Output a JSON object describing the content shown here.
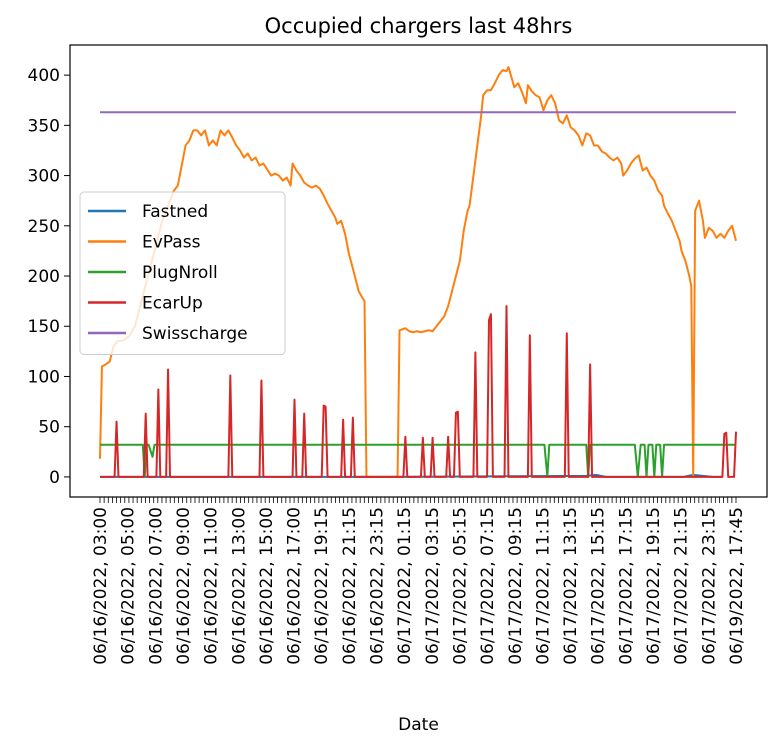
{
  "chart_data": {
    "type": "line",
    "title": "Occupied chargers last 48hrs",
    "xlabel": "Date",
    "ylabel": "",
    "ylim": [
      -20,
      430
    ],
    "yticks": [
      0,
      50,
      100,
      150,
      200,
      250,
      300,
      350,
      400
    ],
    "xticklabels": [
      "06/16/2022, 03:00",
      "06/16/2022, 05:00",
      "06/16/2022, 07:00",
      "06/16/2022, 09:00",
      "06/16/2022, 11:00",
      "06/16/2022, 13:00",
      "06/16/2022, 15:00",
      "06/16/2022, 17:00",
      "06/16/2022, 19:15",
      "06/16/2022, 21:15",
      "06/16/2022, 23:15",
      "06/17/2022, 01:15",
      "06/17/2022, 03:15",
      "06/17/2022, 05:15",
      "06/17/2022, 07:15",
      "06/17/2022, 09:15",
      "06/17/2022, 11:15",
      "06/17/2022, 13:15",
      "06/17/2022, 15:15",
      "06/17/2022, 17:15",
      "06/17/2022, 19:15",
      "06/17/2022, 21:15",
      "06/17/2022, 23:15",
      "06/19/2022, 17:45"
    ],
    "grid": false,
    "legend_position": "center-left",
    "series": [
      {
        "name": "Fastned",
        "color": "#1f77b4",
        "points": [
          [
            0,
            0
          ],
          [
            300,
            0
          ],
          [
            500,
            1
          ],
          [
            510,
            2
          ],
          [
            520,
            0
          ],
          [
            600,
            0
          ],
          [
            610,
            2
          ],
          [
            620,
            1
          ],
          [
            630,
            0
          ],
          [
            640,
            0
          ]
        ]
      },
      {
        "name": "EvPass",
        "color": "#ff7f0e",
        "points": [
          [
            0,
            18
          ],
          [
            2,
            110
          ],
          [
            6,
            112
          ],
          [
            10,
            115
          ],
          [
            14,
            130
          ],
          [
            18,
            135
          ],
          [
            24,
            136
          ],
          [
            30,
            140
          ],
          [
            36,
            150
          ],
          [
            40,
            165
          ],
          [
            44,
            180
          ],
          [
            48,
            195
          ],
          [
            52,
            210
          ],
          [
            56,
            225
          ],
          [
            60,
            240
          ],
          [
            64,
            255
          ],
          [
            68,
            265
          ],
          [
            72,
            275
          ],
          [
            76,
            285
          ],
          [
            80,
            290
          ],
          [
            84,
            310
          ],
          [
            88,
            330
          ],
          [
            92,
            335
          ],
          [
            96,
            345
          ],
          [
            100,
            345
          ],
          [
            104,
            340
          ],
          [
            108,
            345
          ],
          [
            112,
            330
          ],
          [
            116,
            335
          ],
          [
            120,
            330
          ],
          [
            124,
            345
          ],
          [
            128,
            340
          ],
          [
            132,
            345
          ],
          [
            136,
            338
          ],
          [
            140,
            330
          ],
          [
            144,
            325
          ],
          [
            148,
            318
          ],
          [
            152,
            322
          ],
          [
            156,
            315
          ],
          [
            160,
            318
          ],
          [
            164,
            310
          ],
          [
            168,
            312
          ],
          [
            172,
            306
          ],
          [
            176,
            300
          ],
          [
            180,
            302
          ],
          [
            184,
            300
          ],
          [
            188,
            295
          ],
          [
            192,
            298
          ],
          [
            196,
            290
          ],
          [
            198,
            312
          ],
          [
            202,
            305
          ],
          [
            206,
            300
          ],
          [
            210,
            293
          ],
          [
            214,
            290
          ],
          [
            218,
            288
          ],
          [
            222,
            290
          ],
          [
            226,
            287
          ],
          [
            230,
            280
          ],
          [
            234,
            272
          ],
          [
            238,
            265
          ],
          [
            242,
            258
          ],
          [
            244,
            252
          ],
          [
            248,
            255
          ],
          [
            252,
            242
          ],
          [
            256,
            222
          ],
          [
            258,
            215
          ],
          [
            262,
            200
          ],
          [
            266,
            185
          ],
          [
            270,
            178
          ],
          [
            272,
            175
          ],
          [
            274,
            0
          ],
          [
            306,
            0
          ],
          [
            308,
            146
          ],
          [
            314,
            148
          ],
          [
            318,
            145
          ],
          [
            322,
            144
          ],
          [
            326,
            145
          ],
          [
            330,
            144
          ],
          [
            334,
            145
          ],
          [
            338,
            146
          ],
          [
            342,
            145
          ],
          [
            346,
            150
          ],
          [
            350,
            155
          ],
          [
            354,
            160
          ],
          [
            358,
            170
          ],
          [
            362,
            185
          ],
          [
            366,
            200
          ],
          [
            370,
            215
          ],
          [
            374,
            245
          ],
          [
            378,
            265
          ],
          [
            380,
            270
          ],
          [
            384,
            300
          ],
          [
            388,
            330
          ],
          [
            392,
            360
          ],
          [
            394,
            380
          ],
          [
            398,
            385
          ],
          [
            402,
            385
          ],
          [
            406,
            392
          ],
          [
            410,
            400
          ],
          [
            414,
            405
          ],
          [
            418,
            404
          ],
          [
            420,
            408
          ],
          [
            424,
            395
          ],
          [
            426,
            388
          ],
          [
            430,
            392
          ],
          [
            434,
            383
          ],
          [
            438,
            372
          ],
          [
            440,
            390
          ],
          [
            444,
            384
          ],
          [
            448,
            380
          ],
          [
            452,
            378
          ],
          [
            456,
            365
          ],
          [
            460,
            375
          ],
          [
            464,
            380
          ],
          [
            468,
            372
          ],
          [
            472,
            355
          ],
          [
            476,
            352
          ],
          [
            480,
            360
          ],
          [
            484,
            348
          ],
          [
            488,
            345
          ],
          [
            492,
            340
          ],
          [
            496,
            330
          ],
          [
            500,
            342
          ],
          [
            504,
            340
          ],
          [
            508,
            330
          ],
          [
            512,
            330
          ],
          [
            516,
            324
          ],
          [
            520,
            322
          ],
          [
            524,
            318
          ],
          [
            528,
            315
          ],
          [
            532,
            318
          ],
          [
            536,
            312
          ],
          [
            538,
            300
          ],
          [
            542,
            305
          ],
          [
            546,
            312
          ],
          [
            550,
            317
          ],
          [
            554,
            320
          ],
          [
            558,
            305
          ],
          [
            562,
            308
          ],
          [
            566,
            300
          ],
          [
            570,
            295
          ],
          [
            574,
            285
          ],
          [
            578,
            280
          ],
          [
            580,
            270
          ],
          [
            584,
            262
          ],
          [
            588,
            255
          ],
          [
            592,
            245
          ],
          [
            596,
            235
          ],
          [
            598,
            225
          ],
          [
            602,
            215
          ],
          [
            606,
            200
          ],
          [
            608,
            190
          ],
          [
            610,
            0
          ],
          [
            612,
            265
          ],
          [
            616,
            275
          ],
          [
            620,
            255
          ],
          [
            622,
            238
          ],
          [
            626,
            248
          ],
          [
            630,
            245
          ],
          [
            634,
            238
          ],
          [
            638,
            242
          ],
          [
            642,
            238
          ],
          [
            646,
            245
          ],
          [
            650,
            250
          ],
          [
            654,
            235
          ]
        ]
      },
      {
        "name": "PlugNroll",
        "color": "#2ca02c",
        "points": [
          [
            0,
            32
          ],
          [
            44,
            32
          ],
          [
            46,
            0
          ],
          [
            48,
            32
          ],
          [
            50,
            32
          ],
          [
            54,
            20
          ],
          [
            56,
            32
          ],
          [
            457,
            32
          ],
          [
            460,
            0
          ],
          [
            462,
            32
          ],
          [
            500,
            32
          ],
          [
            502,
            0
          ],
          [
            504,
            32
          ],
          [
            550,
            32
          ],
          [
            553,
            0
          ],
          [
            556,
            32
          ],
          [
            560,
            32
          ],
          [
            562,
            0
          ],
          [
            564,
            32
          ],
          [
            568,
            32
          ],
          [
            570,
            0
          ],
          [
            572,
            32
          ],
          [
            576,
            32
          ],
          [
            578,
            0
          ],
          [
            580,
            32
          ],
          [
            654,
            32
          ]
        ]
      },
      {
        "name": "EcarUp",
        "color": "#d62728",
        "points": [
          [
            0,
            0
          ],
          [
            15,
            0
          ],
          [
            17,
            55
          ],
          [
            19,
            0
          ],
          [
            45,
            0
          ],
          [
            47,
            63
          ],
          [
            49,
            0
          ],
          [
            58,
            0
          ],
          [
            60,
            87
          ],
          [
            62,
            0
          ],
          [
            68,
            0
          ],
          [
            70,
            107
          ],
          [
            72,
            0
          ],
          [
            132,
            0
          ],
          [
            134,
            101
          ],
          [
            136,
            0
          ],
          [
            164,
            0
          ],
          [
            166,
            96
          ],
          [
            168,
            0
          ],
          [
            198,
            0
          ],
          [
            200,
            77
          ],
          [
            202,
            0
          ],
          [
            208,
            0
          ],
          [
            210,
            63
          ],
          [
            212,
            0
          ],
          [
            228,
            0
          ],
          [
            230,
            71
          ],
          [
            232,
            70
          ],
          [
            234,
            0
          ],
          [
            248,
            0
          ],
          [
            250,
            57
          ],
          [
            252,
            0
          ],
          [
            258,
            0
          ],
          [
            260,
            59
          ],
          [
            262,
            0
          ],
          [
            312,
            0
          ],
          [
            314,
            40
          ],
          [
            316,
            0
          ],
          [
            330,
            0
          ],
          [
            332,
            39
          ],
          [
            334,
            0
          ],
          [
            340,
            0
          ],
          [
            342,
            39
          ],
          [
            344,
            0
          ],
          [
            356,
            0
          ],
          [
            358,
            40
          ],
          [
            360,
            0
          ],
          [
            364,
            0
          ],
          [
            366,
            64
          ],
          [
            368,
            65
          ],
          [
            370,
            0
          ],
          [
            384,
            0
          ],
          [
            386,
            124
          ],
          [
            388,
            0
          ],
          [
            398,
            0
          ],
          [
            400,
            156
          ],
          [
            402,
            162
          ],
          [
            404,
            0
          ],
          [
            416,
            0
          ],
          [
            418,
            170
          ],
          [
            420,
            0
          ],
          [
            440,
            0
          ],
          [
            442,
            141
          ],
          [
            444,
            0
          ],
          [
            478,
            0
          ],
          [
            480,
            143
          ],
          [
            482,
            0
          ],
          [
            502,
            0
          ],
          [
            504,
            112
          ],
          [
            506,
            0
          ],
          [
            640,
            0
          ],
          [
            642,
            43
          ],
          [
            644,
            44
          ],
          [
            646,
            0
          ],
          [
            652,
            0
          ],
          [
            654,
            45
          ]
        ]
      },
      {
        "name": "Swisscharge",
        "color": "#9467bd",
        "points": [
          [
            0,
            363
          ],
          [
            654,
            363
          ]
        ]
      }
    ]
  }
}
